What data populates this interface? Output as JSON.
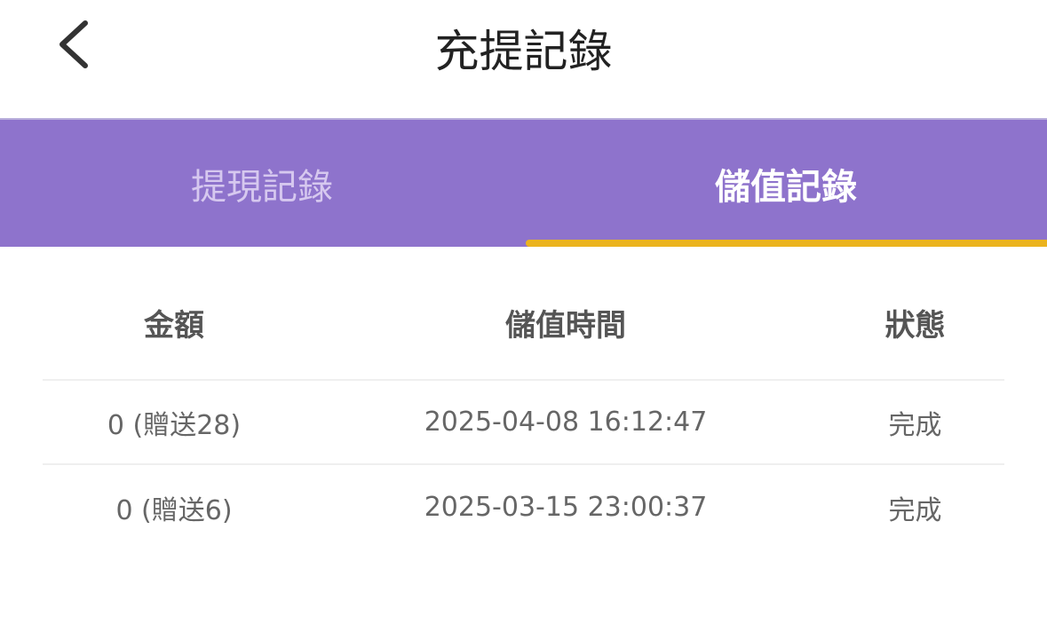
{
  "header": {
    "title": "充提記錄",
    "back_icon": "chevron-left-icon"
  },
  "tabs": [
    {
      "label": "提現記錄",
      "active": false
    },
    {
      "label": "儲值記錄",
      "active": true
    }
  ],
  "colors": {
    "tab_bar": "#8e73cc",
    "indicator": "#ebb31e"
  },
  "table": {
    "columns": [
      "金額",
      "儲值時間",
      "狀態"
    ],
    "rows": [
      [
        "0 (贈送28)",
        "2025-04-08 16:12:47",
        "完成"
      ],
      [
        "0 (贈送6)",
        "2025-03-15 23:00:37",
        "完成"
      ]
    ]
  }
}
